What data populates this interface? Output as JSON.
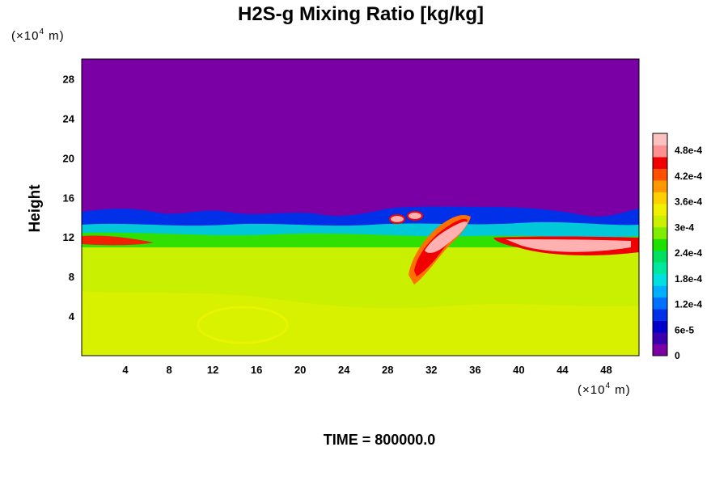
{
  "chart_data": {
    "type": "heatmap",
    "title": "H2S-g Mixing Ratio [kg/kg]",
    "ylabel": "Height",
    "x_unit": {
      "prefix": "(×10",
      "exponent": "4",
      "suffix": " m)"
    },
    "y_unit": {
      "prefix": "(×10",
      "exponent": "4",
      "suffix": " m)"
    },
    "xlim": [
      0,
      51
    ],
    "ylim": [
      0,
      30
    ],
    "x_ticks": [
      "4",
      "8",
      "12",
      "16",
      "20",
      "24",
      "28",
      "32",
      "36",
      "40",
      "44",
      "48"
    ],
    "y_ticks": [
      "4",
      "8",
      "12",
      "16",
      "20",
      "24",
      "28"
    ],
    "colorbar": {
      "range": [
        0,
        0.00052
      ],
      "labels": [
        "0",
        "6e-5",
        "1.2e-4",
        "1.8e-4",
        "2.4e-4",
        "3e-4",
        "3.6e-4",
        "4.2e-4",
        "4.8e-4"
      ],
      "colors": [
        "#7a00a6",
        "#3a00b0",
        "#0000c8",
        "#0030e8",
        "#0070ff",
        "#00b0ff",
        "#00e0e0",
        "#00e8a0",
        "#00e060",
        "#20e000",
        "#80ec00",
        "#c8f000",
        "#f0f000",
        "#ffd000",
        "#ff9800",
        "#ff5000",
        "#f00000",
        "#ff9090",
        "#ffc0c0"
      ]
    },
    "fields": {
      "upper": {
        "value": 0,
        "color": "#7a00a6"
      },
      "lower": {
        "value": 0.00033,
        "color": "#c8f000"
      },
      "plume": {
        "value": 0.0005,
        "color": "#ffb0b0"
      }
    },
    "time_label": "TIME = 800000.0"
  }
}
